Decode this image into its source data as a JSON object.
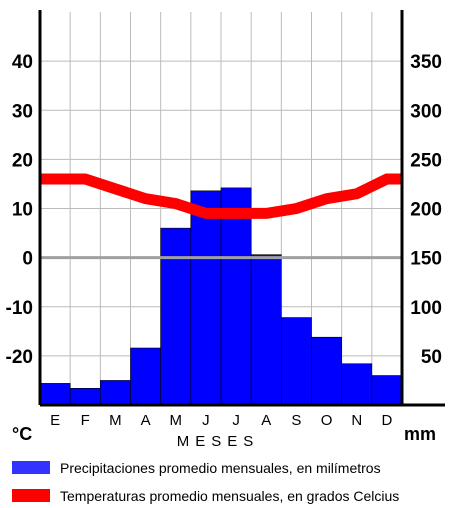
{
  "chart_data": {
    "type": "bar",
    "categories": [
      "E",
      "F",
      "M",
      "A",
      "M",
      "J",
      "J",
      "A",
      "S",
      "O",
      "N",
      "D"
    ],
    "xlabel": "MESES",
    "left_axis": {
      "unit_label": "°C",
      "ticks": [
        40,
        30,
        20,
        10,
        0,
        -10,
        -20
      ],
      "tick_labels": [
        "40",
        "30",
        "20",
        "10",
        "0",
        "-10",
        "-20"
      ],
      "range": [
        -30,
        50
      ]
    },
    "right_axis": {
      "unit_label": "mm",
      "ticks": [
        350,
        300,
        250,
        200,
        150,
        100,
        50
      ],
      "tick_labels": [
        "350",
        "300",
        "250",
        "200",
        "150",
        "100",
        "50"
      ],
      "range": [
        0,
        400
      ]
    },
    "grid": true,
    "zero_line": true,
    "series": [
      {
        "name": "Precipitaciones promedio mensuales, en milímetros",
        "kind": "bar",
        "axis": "right",
        "color": "#0000ff",
        "values": [
          22,
          17,
          25,
          58,
          180,
          218,
          221,
          153,
          89,
          69,
          42,
          30
        ]
      },
      {
        "name": "Temperaturas promedio mensuales, en grados Celcius",
        "kind": "line",
        "axis": "left",
        "color": "#ff0000",
        "values": [
          16,
          16,
          14,
          12,
          11,
          9,
          9,
          9,
          10,
          12,
          13,
          16
        ]
      }
    ],
    "legend": {
      "placement": "bottom",
      "items": [
        "Precipitaciones promedio mensuales, en milímetros",
        "Temperaturas promedio mensuales, en grados Celcius"
      ]
    }
  }
}
